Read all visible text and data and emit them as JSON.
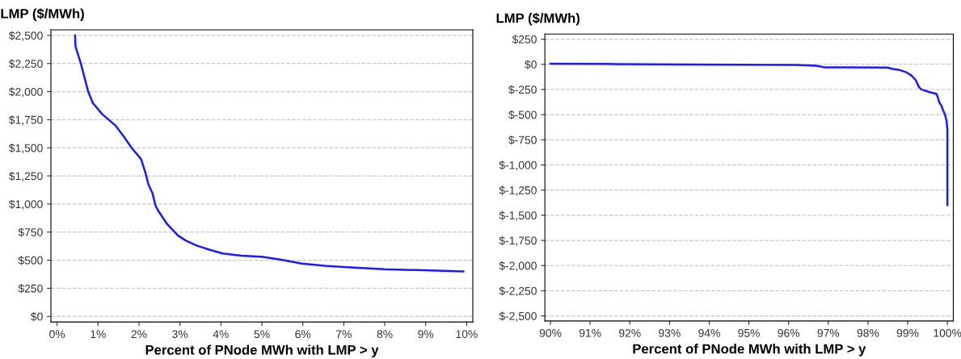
{
  "chart_data": [
    {
      "type": "line",
      "ylabel": "LMP ($/MWh)",
      "xlabel": "Percent of PNode MWh with LMP > y",
      "grid": "y",
      "line_style": "solid",
      "xlim": [
        -0.15,
        10.15
      ],
      "ylim": [
        -50,
        2550
      ],
      "xticks": [
        {
          "value": 0,
          "label": "0%"
        },
        {
          "value": 1,
          "label": "1%"
        },
        {
          "value": 2,
          "label": "2%"
        },
        {
          "value": 3,
          "label": "3%"
        },
        {
          "value": 4,
          "label": "4%"
        },
        {
          "value": 5,
          "label": "5%"
        },
        {
          "value": 6,
          "label": "6%"
        },
        {
          "value": 7,
          "label": "7%"
        },
        {
          "value": 8,
          "label": "8%"
        },
        {
          "value": 9,
          "label": "9%"
        },
        {
          "value": 10,
          "label": "10%"
        }
      ],
      "yticks": [
        {
          "value": 0,
          "label": "$0"
        },
        {
          "value": 250,
          "label": "$250"
        },
        {
          "value": 500,
          "label": "$500"
        },
        {
          "value": 750,
          "label": "$750"
        },
        {
          "value": 1000,
          "label": "$1,000"
        },
        {
          "value": 1250,
          "label": "$1,250"
        },
        {
          "value": 1500,
          "label": "$1,500"
        },
        {
          "value": 1750,
          "label": "$1,750"
        },
        {
          "value": 2000,
          "label": "$2,000"
        },
        {
          "value": 2250,
          "label": "$2,250"
        },
        {
          "value": 2500,
          "label": "$2,500"
        }
      ],
      "series": [
        {
          "color": "#1a1aff",
          "x": [
            0.44,
            0.45,
            0.58,
            0.76,
            0.87,
            1.1,
            1.42,
            1.63,
            1.82,
            2.05,
            2.16,
            2.23,
            2.33,
            2.4,
            2.46,
            2.69,
            2.95,
            3.14,
            3.41,
            3.75,
            4.05,
            4.51,
            5.0,
            5.45,
            5.98,
            6.55,
            7.0,
            8.0,
            8.98,
            9.92
          ],
          "values": [
            2500,
            2400,
            2250,
            2000,
            1900,
            1800,
            1700,
            1600,
            1500,
            1400,
            1275,
            1175,
            1095,
            990,
            945,
            820,
            720,
            675,
            630,
            590,
            560,
            540,
            530,
            505,
            470,
            450,
            440,
            420,
            410,
            400
          ]
        }
      ]
    },
    {
      "type": "line",
      "ylabel": "LMP ($/MWh)",
      "xlabel": "Percent of PNode MWh with LMP > y",
      "grid": "y",
      "line_style": "solid",
      "xlim": [
        89.86,
        100.15
      ],
      "ylim": [
        -2550,
        300
      ],
      "xticks": [
        {
          "value": 90,
          "label": "90%"
        },
        {
          "value": 91,
          "label": "91%"
        },
        {
          "value": 92,
          "label": "92%"
        },
        {
          "value": 93,
          "label": "93%"
        },
        {
          "value": 94,
          "label": "94%"
        },
        {
          "value": 95,
          "label": "95%"
        },
        {
          "value": 96,
          "label": "96%"
        },
        {
          "value": 97,
          "label": "97%"
        },
        {
          "value": 98,
          "label": "98%"
        },
        {
          "value": 99,
          "label": "99%"
        },
        {
          "value": 100,
          "label": "100%"
        }
      ],
      "yticks": [
        {
          "value": -2500,
          "label": "$-2,500"
        },
        {
          "value": -2250,
          "label": "$-2,250"
        },
        {
          "value": -2000,
          "label": "$-2,000"
        },
        {
          "value": -1750,
          "label": "$-1,750"
        },
        {
          "value": -1500,
          "label": "$-1,500"
        },
        {
          "value": -1250,
          "label": "$-1,250"
        },
        {
          "value": -1000,
          "label": "$-1,000"
        },
        {
          "value": -750,
          "label": "$-750"
        },
        {
          "value": -500,
          "label": "$-500"
        },
        {
          "value": -250,
          "label": "$-250"
        },
        {
          "value": 0,
          "label": "$0"
        },
        {
          "value": 250,
          "label": "$250"
        }
      ],
      "series": [
        {
          "color": "#1a1aff",
          "x": [
            90,
            91.4,
            93.7,
            96.2,
            96.7,
            96.9,
            97.5,
            98.5,
            98.6,
            98.8,
            98.97,
            99.09,
            99.2,
            99.29,
            99.35,
            99.54,
            99.73,
            99.8,
            99.85,
            99.89,
            99.94,
            99.98,
            100,
            100,
            100
          ],
          "values": [
            6,
            3,
            -3,
            -6,
            -15,
            -30,
            -30,
            -33,
            -45,
            -57,
            -80,
            -110,
            -155,
            -230,
            -250,
            -275,
            -295,
            -380,
            -410,
            -455,
            -500,
            -560,
            -650,
            -1040,
            -1400
          ]
        }
      ]
    }
  ]
}
